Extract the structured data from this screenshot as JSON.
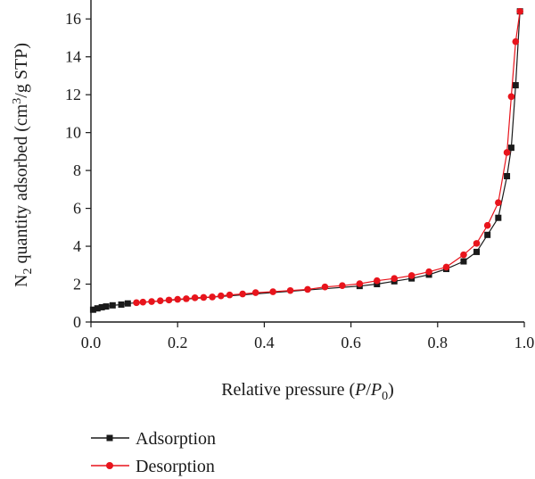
{
  "chart_data": {
    "type": "line",
    "title": "",
    "xlabel_parts": {
      "prefix": "Relative pressure (",
      "p": "P",
      "slash": "/",
      "p0": "P",
      "p0_sub": "0",
      "suffix": ")"
    },
    "ylabel_parts": {
      "n": "N",
      "n_sub": "2",
      "mid": " quantity adsorbed (cm",
      "sup": "3",
      "suffix": "/g STP)"
    },
    "xlim": [
      0.0,
      1.0
    ],
    "ylim": [
      0,
      17
    ],
    "xticks": [
      0.0,
      0.2,
      0.4,
      0.6,
      0.8,
      1.0
    ],
    "xtick_labels": [
      "0.0",
      "0.2",
      "0.4",
      "0.6",
      "0.8",
      "1.0"
    ],
    "yticks": [
      0,
      2,
      4,
      6,
      8,
      10,
      12,
      14,
      16
    ],
    "ytick_labels": [
      "0",
      "2",
      "4",
      "6",
      "8",
      "10",
      "12",
      "14",
      "16"
    ],
    "grid": false,
    "legend_position": "bottom-left, below plot",
    "series": [
      {
        "name": "Adsorption",
        "color": "#1a1a1a",
        "marker": "square",
        "x": [
          0.005,
          0.015,
          0.025,
          0.035,
          0.05,
          0.07,
          0.085,
          0.62,
          0.66,
          0.7,
          0.74,
          0.78,
          0.82,
          0.86,
          0.89,
          0.915,
          0.94,
          0.96,
          0.97,
          0.98,
          0.99
        ],
        "y": [
          0.65,
          0.72,
          0.78,
          0.82,
          0.88,
          0.92,
          0.98,
          1.9,
          2.0,
          2.15,
          2.3,
          2.5,
          2.8,
          3.2,
          3.7,
          4.6,
          5.5,
          7.7,
          9.2,
          12.5,
          16.4
        ]
      },
      {
        "name": "Desorption",
        "color": "#e8141c",
        "marker": "circle",
        "x": [
          0.99,
          0.98,
          0.97,
          0.96,
          0.94,
          0.915,
          0.89,
          0.86,
          0.82,
          0.78,
          0.74,
          0.7,
          0.66,
          0.62,
          0.58,
          0.54,
          0.5,
          0.46,
          0.42,
          0.38,
          0.35,
          0.32,
          0.3,
          0.28,
          0.26,
          0.24,
          0.22,
          0.2,
          0.18,
          0.16,
          0.14,
          0.12,
          0.105
        ],
        "y": [
          16.4,
          14.8,
          11.9,
          8.95,
          6.3,
          5.1,
          4.15,
          3.55,
          2.9,
          2.65,
          2.45,
          2.3,
          2.18,
          2.02,
          1.92,
          1.85,
          1.72,
          1.66,
          1.6,
          1.55,
          1.48,
          1.43,
          1.38,
          1.32,
          1.3,
          1.28,
          1.23,
          1.2,
          1.16,
          1.12,
          1.08,
          1.05,
          1.02
        ]
      }
    ]
  }
}
